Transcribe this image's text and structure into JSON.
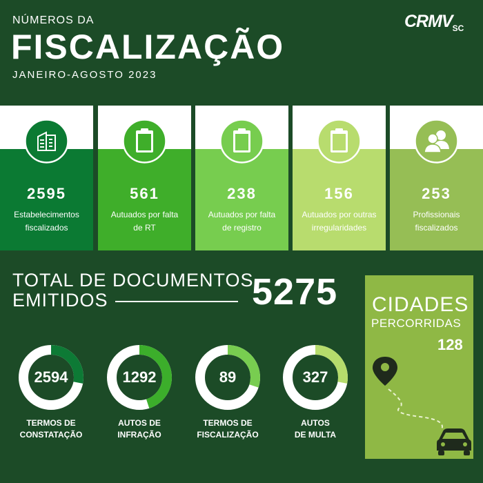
{
  "header": {
    "supertitle": "NÚMEROS DA",
    "title": "FISCALIZAÇÃO",
    "period": "JANEIRO-AGOSTO 2023",
    "logo_main": "CRMV",
    "logo_sub": "SC"
  },
  "stats": [
    {
      "value": "2595",
      "label_line1": "Estabelecimentos",
      "label_line2": "fiscalizados",
      "icon": "building-icon",
      "color": "#0b7a33"
    },
    {
      "value": "561",
      "label_line1": "Autuados por falta",
      "label_line2": "de RT",
      "icon": "clipboard-icon",
      "color": "#3fae2a"
    },
    {
      "value": "238",
      "label_line1": "Autuados por falta",
      "label_line2": "de registro",
      "icon": "clipboard-icon",
      "color": "#77cd4f"
    },
    {
      "value": "156",
      "label_line1": "Autuados por outras",
      "label_line2": "irregularidades",
      "icon": "clipboard-icon",
      "color": "#b8dc6e"
    },
    {
      "value": "253",
      "label_line1": "Profissionais",
      "label_line2": "fiscalizados",
      "icon": "people-icon",
      "color": "#96be55"
    }
  ],
  "total": {
    "label_line1": "TOTAL DE DOCUMENTOS",
    "label_line2": "EMITIDOS",
    "value": "5275"
  },
  "documents": [
    {
      "value": "2594",
      "label_line1": "TERMOS DE",
      "label_line2": "CONSTATAÇÃO",
      "ring_color": "#0d7a35",
      "fraction": 0.28
    },
    {
      "value": "1292",
      "label_line1": "AUTOS DE",
      "label_line2": "INFRAÇÃO",
      "ring_color": "#3cae2b",
      "fraction": 0.45
    },
    {
      "value": "89",
      "label_line1": "TERMOS DE",
      "label_line2": "FISCALIZAÇÃO",
      "ring_color": "#78cd50",
      "fraction": 0.3
    },
    {
      "value": "327",
      "label_line1": "AUTOS",
      "label_line2": "DE MULTA",
      "ring_color": "#b6dc6c",
      "fraction": 0.28
    }
  ],
  "cities": {
    "title": "CIDADES",
    "subtitle": "PERCORRIDAS",
    "value": "128"
  }
}
